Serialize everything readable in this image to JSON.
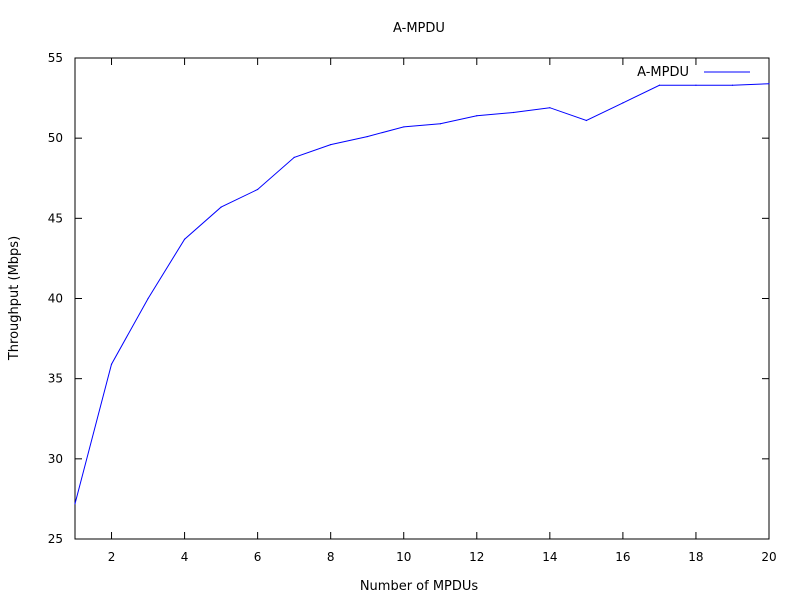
{
  "chart_data": {
    "type": "line",
    "title": "A-MPDU",
    "xlabel": "Number of MPDUs",
    "ylabel": "Throughput (Mbps)",
    "xlim": [
      1,
      20
    ],
    "ylim": [
      25,
      55
    ],
    "xticks": [
      2,
      4,
      6,
      8,
      10,
      12,
      14,
      16,
      18,
      20
    ],
    "yticks": [
      25,
      30,
      35,
      40,
      45,
      50,
      55
    ],
    "grid": false,
    "legend_position": "top-right",
    "series": [
      {
        "name": "A-MPDU",
        "color": "#0000ff",
        "x": [
          1,
          2,
          3,
          4,
          5,
          6,
          7,
          8,
          9,
          10,
          11,
          12,
          13,
          14,
          15,
          16,
          17,
          18,
          19,
          20
        ],
        "y": [
          27.2,
          35.9,
          40.0,
          43.7,
          45.7,
          46.8,
          48.8,
          49.6,
          50.1,
          50.7,
          50.9,
          51.4,
          51.6,
          51.9,
          51.1,
          52.2,
          53.3,
          53.3,
          53.3,
          53.4
        ]
      }
    ]
  }
}
